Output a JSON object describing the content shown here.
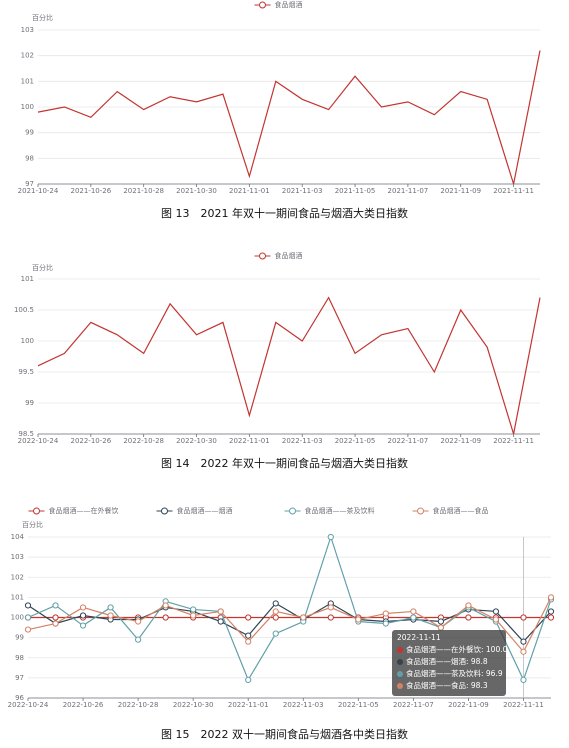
{
  "chart_data": [
    {
      "type": "line",
      "caption": "图 13　2021 年双十一期间食品与烟酒大类日指数",
      "ylabel": "百分比",
      "categories": [
        "2021-10-24",
        null,
        "2021-10-26",
        null,
        "2021-10-28",
        null,
        "2021-10-30",
        null,
        "2021-11-01",
        null,
        "2021-11-03",
        null,
        "2021-11-05",
        null,
        "2021-11-07",
        null,
        "2021-11-09",
        null,
        "2021-11-11",
        null
      ],
      "series": [
        {
          "name": "食品烟酒",
          "color": "#c23531",
          "values": [
            99.8,
            100.0,
            99.6,
            100.6,
            99.9,
            100.4,
            100.2,
            100.5,
            97.3,
            101.0,
            100.3,
            99.9,
            101.2,
            100.0,
            100.2,
            99.7,
            100.6,
            100.3,
            97.0,
            102.2
          ]
        }
      ],
      "ylim": [
        97,
        103
      ],
      "yticks": [
        97,
        98,
        99,
        100,
        101,
        102,
        103
      ],
      "grid": true,
      "markers": false
    },
    {
      "type": "line",
      "caption": "图 14　2022 年双十一期间食品与烟酒大类日指数",
      "ylabel": "百分比",
      "categories": [
        "2022-10-24",
        null,
        "2022-10-26",
        null,
        "2022-10-28",
        null,
        "2022-10-30",
        null,
        "2022-11-01",
        null,
        "2022-11-03",
        null,
        "2022-11-05",
        null,
        "2022-11-07",
        null,
        "2022-11-09",
        null,
        "2022-11-11",
        null
      ],
      "series": [
        {
          "name": "食品烟酒",
          "color": "#c23531",
          "values": [
            99.6,
            99.8,
            100.3,
            100.1,
            99.8,
            100.6,
            100.1,
            100.3,
            98.8,
            100.3,
            100.0,
            100.7,
            99.8,
            100.1,
            100.2,
            99.5,
            100.5,
            99.9,
            98.5,
            100.7
          ]
        }
      ],
      "ylim": [
        98.5,
        101
      ],
      "yticks": [
        98.5,
        99,
        99.5,
        100,
        100.5,
        101
      ],
      "grid": true,
      "markers": false
    },
    {
      "type": "line",
      "caption": "图 15　2022 双十一期间食品与烟酒各中类日指数",
      "ylabel": "百分比",
      "categories": [
        "2022-10-24",
        null,
        "2022-10-26",
        null,
        "2022-10-28",
        null,
        "2022-10-30",
        null,
        "2022-11-01",
        null,
        "2022-11-03",
        null,
        "2022-11-05",
        null,
        "2022-11-07",
        null,
        "2022-11-09",
        null,
        "2022-11-11",
        null
      ],
      "series": [
        {
          "name": "食品烟酒——在外餐饮",
          "color": "#c23531",
          "values": [
            100.0,
            100.0,
            100.0,
            100.0,
            100.0,
            100.0,
            100.0,
            100.0,
            100.0,
            100.0,
            100.0,
            100.0,
            100.0,
            100.0,
            100.0,
            100.0,
            100.0,
            100.0,
            100.0,
            100.0
          ]
        },
        {
          "name": "食品烟酒——烟酒",
          "color": "#2f4554",
          "values": [
            100.6,
            99.7,
            100.1,
            99.9,
            99.9,
            100.5,
            100.3,
            99.8,
            99.1,
            100.7,
            99.9,
            100.7,
            99.9,
            99.8,
            99.9,
            99.8,
            100.4,
            100.3,
            98.8,
            100.3
          ]
        },
        {
          "name": "食品烟酒——茶及饮料",
          "color": "#61a0a8",
          "values": [
            100.0,
            100.6,
            99.6,
            100.5,
            98.9,
            100.8,
            100.4,
            100.3,
            96.9,
            99.2,
            99.8,
            104.0,
            99.8,
            99.7,
            100.0,
            99.5,
            100.5,
            99.8,
            96.9,
            100.9
          ]
        },
        {
          "name": "食品烟酒——食品",
          "color": "#d48265",
          "values": [
            99.4,
            99.7,
            100.5,
            100.1,
            99.8,
            100.6,
            100.1,
            100.3,
            98.8,
            100.3,
            100.0,
            100.5,
            99.9,
            100.2,
            100.3,
            99.5,
            100.6,
            99.9,
            98.3,
            101.0
          ]
        }
      ],
      "ylim": [
        96,
        104
      ],
      "yticks": [
        96,
        97,
        98,
        99,
        100,
        101,
        102,
        103,
        104
      ],
      "grid": true,
      "markers": true,
      "tooltip": {
        "title": "2022-11-11",
        "lines": [
          "食品烟酒——在外餐饮: 100.0",
          "食品烟酒——烟酒: 98.8",
          "食品烟酒——茶及饮料: 96.9",
          "食品烟酒——食品: 98.3"
        ]
      }
    }
  ]
}
